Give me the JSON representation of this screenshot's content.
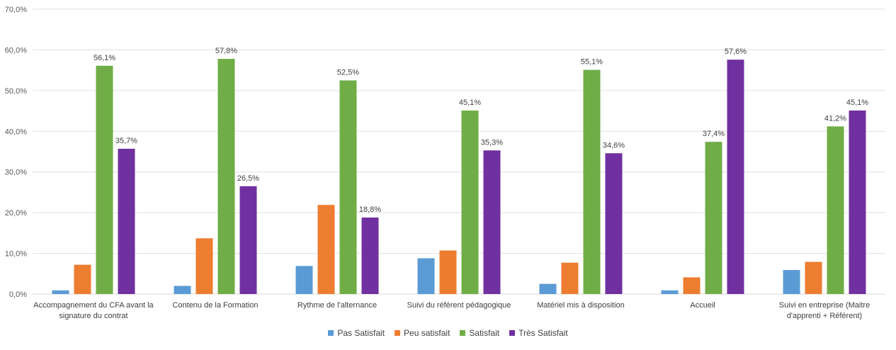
{
  "chart_data": {
    "type": "bar",
    "categories": [
      [
        "Accompagnement du CFA avant la",
        "signature du contrat"
      ],
      [
        "Contenu de la Formation"
      ],
      [
        "Rythme de l'alternance"
      ],
      [
        "Suivi du référent pédagogique"
      ],
      [
        "Matériel mis à disposition"
      ],
      [
        "Accueil"
      ],
      [
        "Suivi en entreprise (Maitre",
        "d'apprenti + Référent)"
      ]
    ],
    "series": [
      {
        "name": "Pas Satisfait",
        "color": "#5B9BD5",
        "values": [
          0.9,
          2.0,
          6.9,
          8.8,
          2.5,
          0.9,
          5.9
        ],
        "labels": [
          "",
          "",
          "",
          "",
          "",
          "",
          ""
        ]
      },
      {
        "name": "Peu satisfait",
        "color": "#ED7D31",
        "values": [
          7.2,
          13.7,
          21.9,
          10.7,
          7.7,
          4.1,
          7.9
        ],
        "labels": [
          "",
          "",
          "",
          "",
          "",
          "",
          ""
        ]
      },
      {
        "name": "Satisfait",
        "color": "#70AD47",
        "values": [
          56.1,
          57.8,
          52.5,
          45.1,
          55.1,
          37.4,
          41.2
        ],
        "labels": [
          "56,1%",
          "57,8%",
          "52,5%",
          "45,1%",
          "55,1%",
          "37,4%",
          "41,2%"
        ]
      },
      {
        "name": "Très Satisfait",
        "color": "#7030A0",
        "values": [
          35.7,
          26.5,
          18.8,
          35.3,
          34.6,
          57.6,
          45.1
        ],
        "labels": [
          "35,7%",
          "26,5%",
          "18,8%",
          "35,3%",
          "34,6%",
          "57,6%",
          "45,1%"
        ]
      }
    ],
    "ylim": [
      0,
      70
    ],
    "yticks": [
      "0,0%",
      "10,0%",
      "20,0%",
      "30,0%",
      "40,0%",
      "50,0%",
      "60,0%",
      "70,0%"
    ],
    "grid": true,
    "legend_position": "bottom"
  }
}
